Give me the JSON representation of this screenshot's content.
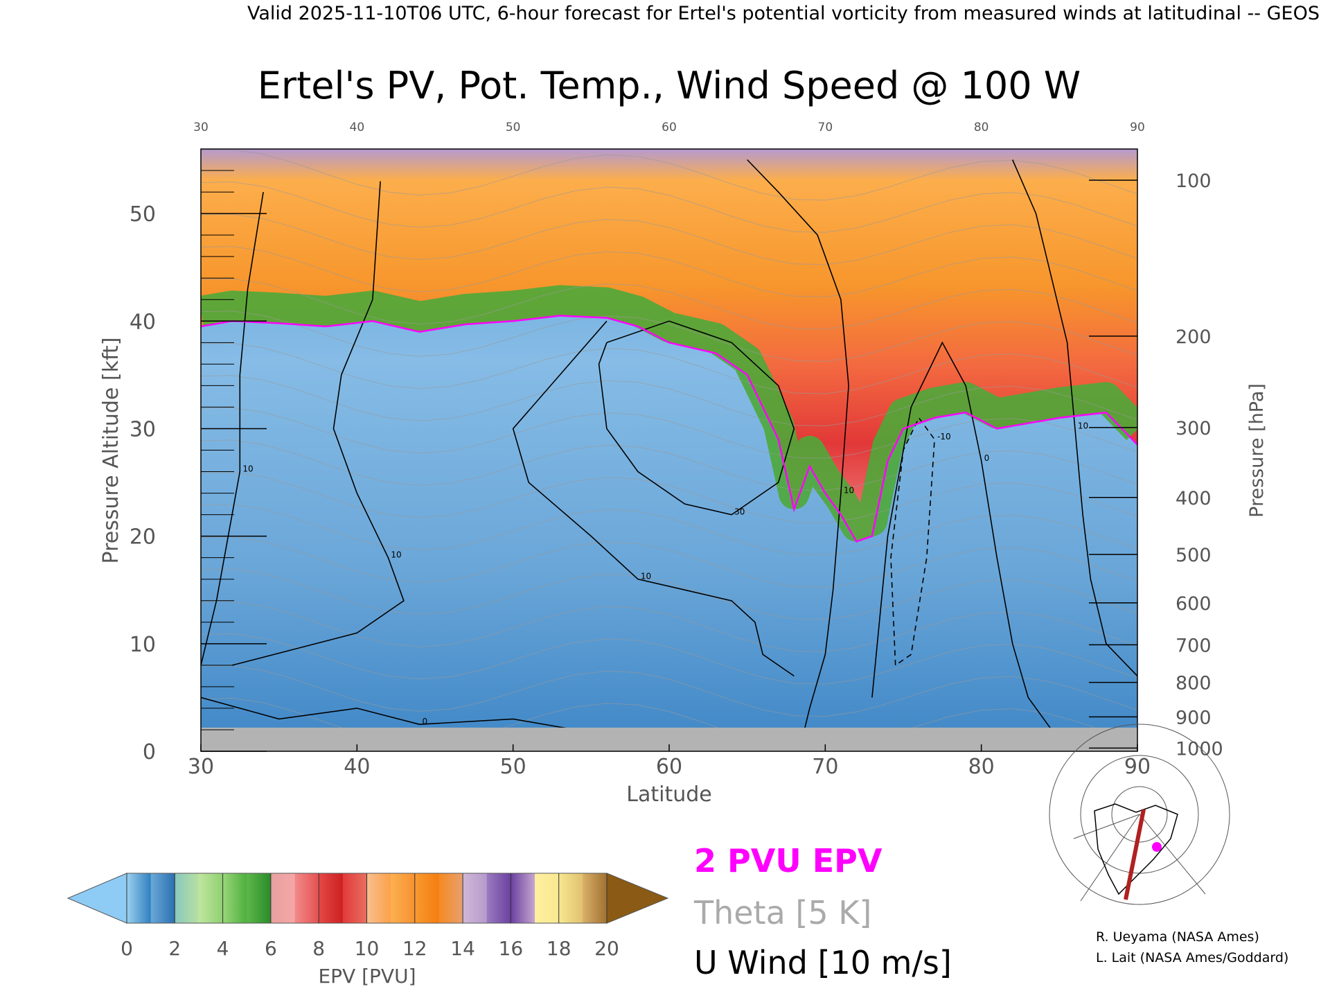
{
  "chart_data": {
    "type": "heatmap",
    "header": "Valid 2025-11-10T06 UTC, 6-hour forecast for Ertel's potential vorticity from measured winds at latitudinal -- GEOS",
    "title": "Ertel's PV, Pot. Temp., Wind Speed @ 100 W",
    "xlabel": "Latitude",
    "ylabel": "Pressure Altitude [kft]",
    "ylabel_right": "Pressure [hPa]",
    "xlim": [
      30,
      90
    ],
    "ylim": [
      0,
      56
    ],
    "x_ticks": [
      30,
      40,
      50,
      60,
      70,
      80,
      90
    ],
    "x_tick_labels": [
      "30",
      "40",
      "50",
      "60",
      "70",
      "80",
      "90"
    ],
    "y_ticks": [
      0,
      10,
      20,
      30,
      40,
      50
    ],
    "y_tick_labels": [
      "0",
      "10",
      "20",
      "30",
      "40",
      "50"
    ],
    "pressure_ticks": [
      {
        "label": "100",
        "kft": 53.1
      },
      {
        "label": "200",
        "kft": 38.6
      },
      {
        "label": "300",
        "kft": 30.1
      },
      {
        "label": "400",
        "kft": 23.6
      },
      {
        "label": "500",
        "kft": 18.3
      },
      {
        "label": "600",
        "kft": 13.8
      },
      {
        "label": "700",
        "kft": 9.9
      },
      {
        "label": "800",
        "kft": 6.4
      },
      {
        "label": "900",
        "kft": 3.2
      },
      {
        "label": "1000",
        "kft": 0.3
      }
    ],
    "tropopause_2pvu": [
      [
        30,
        39.5
      ],
      [
        32,
        40.0
      ],
      [
        35,
        39.8
      ],
      [
        38,
        39.5
      ],
      [
        41,
        40.0
      ],
      [
        44,
        39.0
      ],
      [
        47,
        39.7
      ],
      [
        50,
        40.0
      ],
      [
        53,
        40.5
      ],
      [
        56,
        40.3
      ],
      [
        58,
        39.5
      ],
      [
        60,
        38.0
      ],
      [
        63,
        37.0
      ],
      [
        65,
        35.0
      ],
      [
        66,
        32.0
      ],
      [
        67,
        29.0
      ],
      [
        68,
        22.5
      ],
      [
        69,
        26.5
      ],
      [
        70,
        24.0
      ],
      [
        71,
        22.0
      ],
      [
        72,
        19.5
      ],
      [
        73,
        20.0
      ],
      [
        74,
        27.0
      ],
      [
        75,
        30.0
      ],
      [
        77,
        31.0
      ],
      [
        79,
        31.5
      ],
      [
        81,
        30.0
      ],
      [
        83,
        30.5
      ],
      [
        85,
        31.0
      ],
      [
        88,
        31.5
      ],
      [
        90,
        28.5
      ]
    ],
    "wind_contours": [
      {
        "label": "10",
        "points": [
          [
            34,
            52
          ],
          [
            33,
            43
          ],
          [
            32.5,
            35
          ],
          [
            32.5,
            26
          ],
          [
            31,
            14
          ],
          [
            30,
            8
          ]
        ]
      },
      {
        "label": "10",
        "points": [
          [
            41.5,
            53
          ],
          [
            41,
            42
          ],
          [
            39,
            35
          ],
          [
            38.5,
            30
          ],
          [
            40,
            24
          ],
          [
            42,
            18
          ],
          [
            43,
            14
          ],
          [
            40,
            11
          ],
          [
            36,
            9.5
          ],
          [
            32,
            8
          ]
        ]
      },
      {
        "label": "10",
        "points": [
          [
            56,
            40
          ],
          [
            53,
            35
          ],
          [
            50,
            30
          ],
          [
            51,
            25
          ],
          [
            55,
            20
          ],
          [
            58,
            16
          ],
          [
            61,
            15
          ],
          [
            64,
            14
          ],
          [
            65.5,
            12
          ],
          [
            66,
            9
          ],
          [
            68,
            7
          ]
        ]
      },
      {
        "label": "10",
        "points": [
          [
            65,
            55
          ],
          [
            67,
            52
          ],
          [
            69.5,
            48
          ],
          [
            71,
            42
          ],
          [
            71.5,
            34
          ],
          [
            71,
            24
          ],
          [
            70.5,
            15
          ],
          [
            70,
            9
          ],
          [
            69,
            4
          ],
          [
            68.5,
            1
          ]
        ]
      },
      {
        "label": "10",
        "points": [
          [
            82,
            55
          ],
          [
            83.5,
            50
          ],
          [
            84.5,
            44
          ],
          [
            85.5,
            38
          ],
          [
            86,
            30
          ],
          [
            86.5,
            22
          ],
          [
            87,
            16
          ],
          [
            88,
            10
          ],
          [
            90,
            7
          ]
        ]
      },
      {
        "label": "30",
        "points": [
          [
            56,
            38
          ],
          [
            60,
            40
          ],
          [
            64,
            38
          ],
          [
            67,
            34
          ],
          [
            68,
            30
          ],
          [
            67,
            25
          ],
          [
            64,
            22
          ],
          [
            61,
            23
          ],
          [
            58,
            26
          ],
          [
            56,
            30
          ],
          [
            55.5,
            36
          ],
          [
            56,
            38
          ]
        ]
      },
      {
        "label": "0",
        "points": [
          [
            30,
            5
          ],
          [
            35,
            3
          ],
          [
            40,
            4
          ],
          [
            44,
            2.5
          ],
          [
            50,
            3
          ],
          [
            54,
            2
          ]
        ]
      },
      {
        "label": "0",
        "points": [
          [
            73,
            5
          ],
          [
            74,
            20
          ],
          [
            75.5,
            32
          ],
          [
            77.5,
            38
          ],
          [
            79,
            34
          ],
          [
            80,
            27
          ],
          [
            81,
            18
          ],
          [
            82,
            10
          ],
          [
            83,
            5
          ],
          [
            85,
            1
          ]
        ]
      },
      {
        "label": "-10",
        "points": [
          [
            74.5,
            8
          ],
          [
            74.2,
            18
          ],
          [
            75,
            28
          ],
          [
            76,
            31
          ],
          [
            77,
            29
          ],
          [
            76.5,
            18
          ],
          [
            75.5,
            9
          ],
          [
            74.5,
            8
          ]
        ],
        "dashed": true
      }
    ],
    "legend": [
      {
        "label": "2 PVU EPV",
        "color": "#ff00ff"
      },
      {
        "label": "Theta [5 K]",
        "color": "#aaaaaa"
      },
      {
        "label": "U Wind [10 m/s]",
        "color": "#000000"
      }
    ],
    "colorbar": {
      "label": "EPV [PVU]",
      "ticks": [
        "0",
        "2",
        "4",
        "6",
        "8",
        "10",
        "12",
        "14",
        "16",
        "18",
        "20"
      ],
      "under_color": "#8ecbf5",
      "over_color": "#8b5a14",
      "segments": [
        {
          "from": 0,
          "to": 1,
          "colors": [
            "#9bd0ee",
            "#2f7fc0"
          ]
        },
        {
          "from": 1,
          "to": 2,
          "colors": [
            "#6aa9d8",
            "#2b6fb0"
          ]
        },
        {
          "from": 2,
          "to": 3,
          "colors": [
            "#8ac8c0",
            "#b8e0a0"
          ]
        },
        {
          "from": 3,
          "to": 4,
          "colors": [
            "#c0e6a0",
            "#8fd070"
          ]
        },
        {
          "from": 4,
          "to": 5,
          "colors": [
            "#9ad67a",
            "#4caf3c"
          ]
        },
        {
          "from": 5,
          "to": 6,
          "colors": [
            "#5cb84a",
            "#2a8a2a"
          ]
        },
        {
          "from": 6,
          "to": 7,
          "colors": [
            "#e6a0a0",
            "#f7a7a7"
          ]
        },
        {
          "from": 7,
          "to": 8,
          "colors": [
            "#f38a8a",
            "#e55050"
          ]
        },
        {
          "from": 8,
          "to": 9,
          "colors": [
            "#e54848",
            "#cc2020"
          ]
        },
        {
          "from": 9,
          "to": 10,
          "colors": [
            "#e03a3a",
            "#e87060"
          ]
        },
        {
          "from": 10,
          "to": 11,
          "colors": [
            "#f8c090",
            "#fca048"
          ]
        },
        {
          "from": 11,
          "to": 12,
          "colors": [
            "#fcb050",
            "#f89030"
          ]
        },
        {
          "from": 12,
          "to": 13,
          "colors": [
            "#f89a30",
            "#f57d10"
          ]
        },
        {
          "from": 13,
          "to": 14,
          "colors": [
            "#f58a20",
            "#e7a070"
          ]
        },
        {
          "from": 14,
          "to": 15,
          "colors": [
            "#d0b8d8",
            "#b59acb"
          ]
        },
        {
          "from": 15,
          "to": 16,
          "colors": [
            "#9a7abf",
            "#6a40a0"
          ]
        },
        {
          "from": 16,
          "to": 17,
          "colors": [
            "#6a40a0",
            "#c8a8d0"
          ]
        },
        {
          "from": 17,
          "to": 18,
          "colors": [
            "#fff0a0",
            "#f8e890"
          ]
        },
        {
          "from": 18,
          "to": 19,
          "colors": [
            "#f8e890",
            "#e0c070"
          ]
        },
        {
          "from": 19,
          "to": 20,
          "colors": [
            "#d8b068",
            "#a07030"
          ]
        }
      ]
    },
    "epv_bands": [
      {
        "name": "stratosphere-upper",
        "color": "#f4a640"
      },
      {
        "name": "stratosphere-red",
        "color": "#e53f3f"
      },
      {
        "name": "tropopause-green",
        "color": "#4ea83a"
      },
      {
        "name": "troposphere",
        "color": "#7fb4e0"
      }
    ]
  },
  "credits": {
    "line1": "R. Ueyama (NASA Ames)",
    "line2": "L. Lait (NASA Ames/Goddard)"
  }
}
